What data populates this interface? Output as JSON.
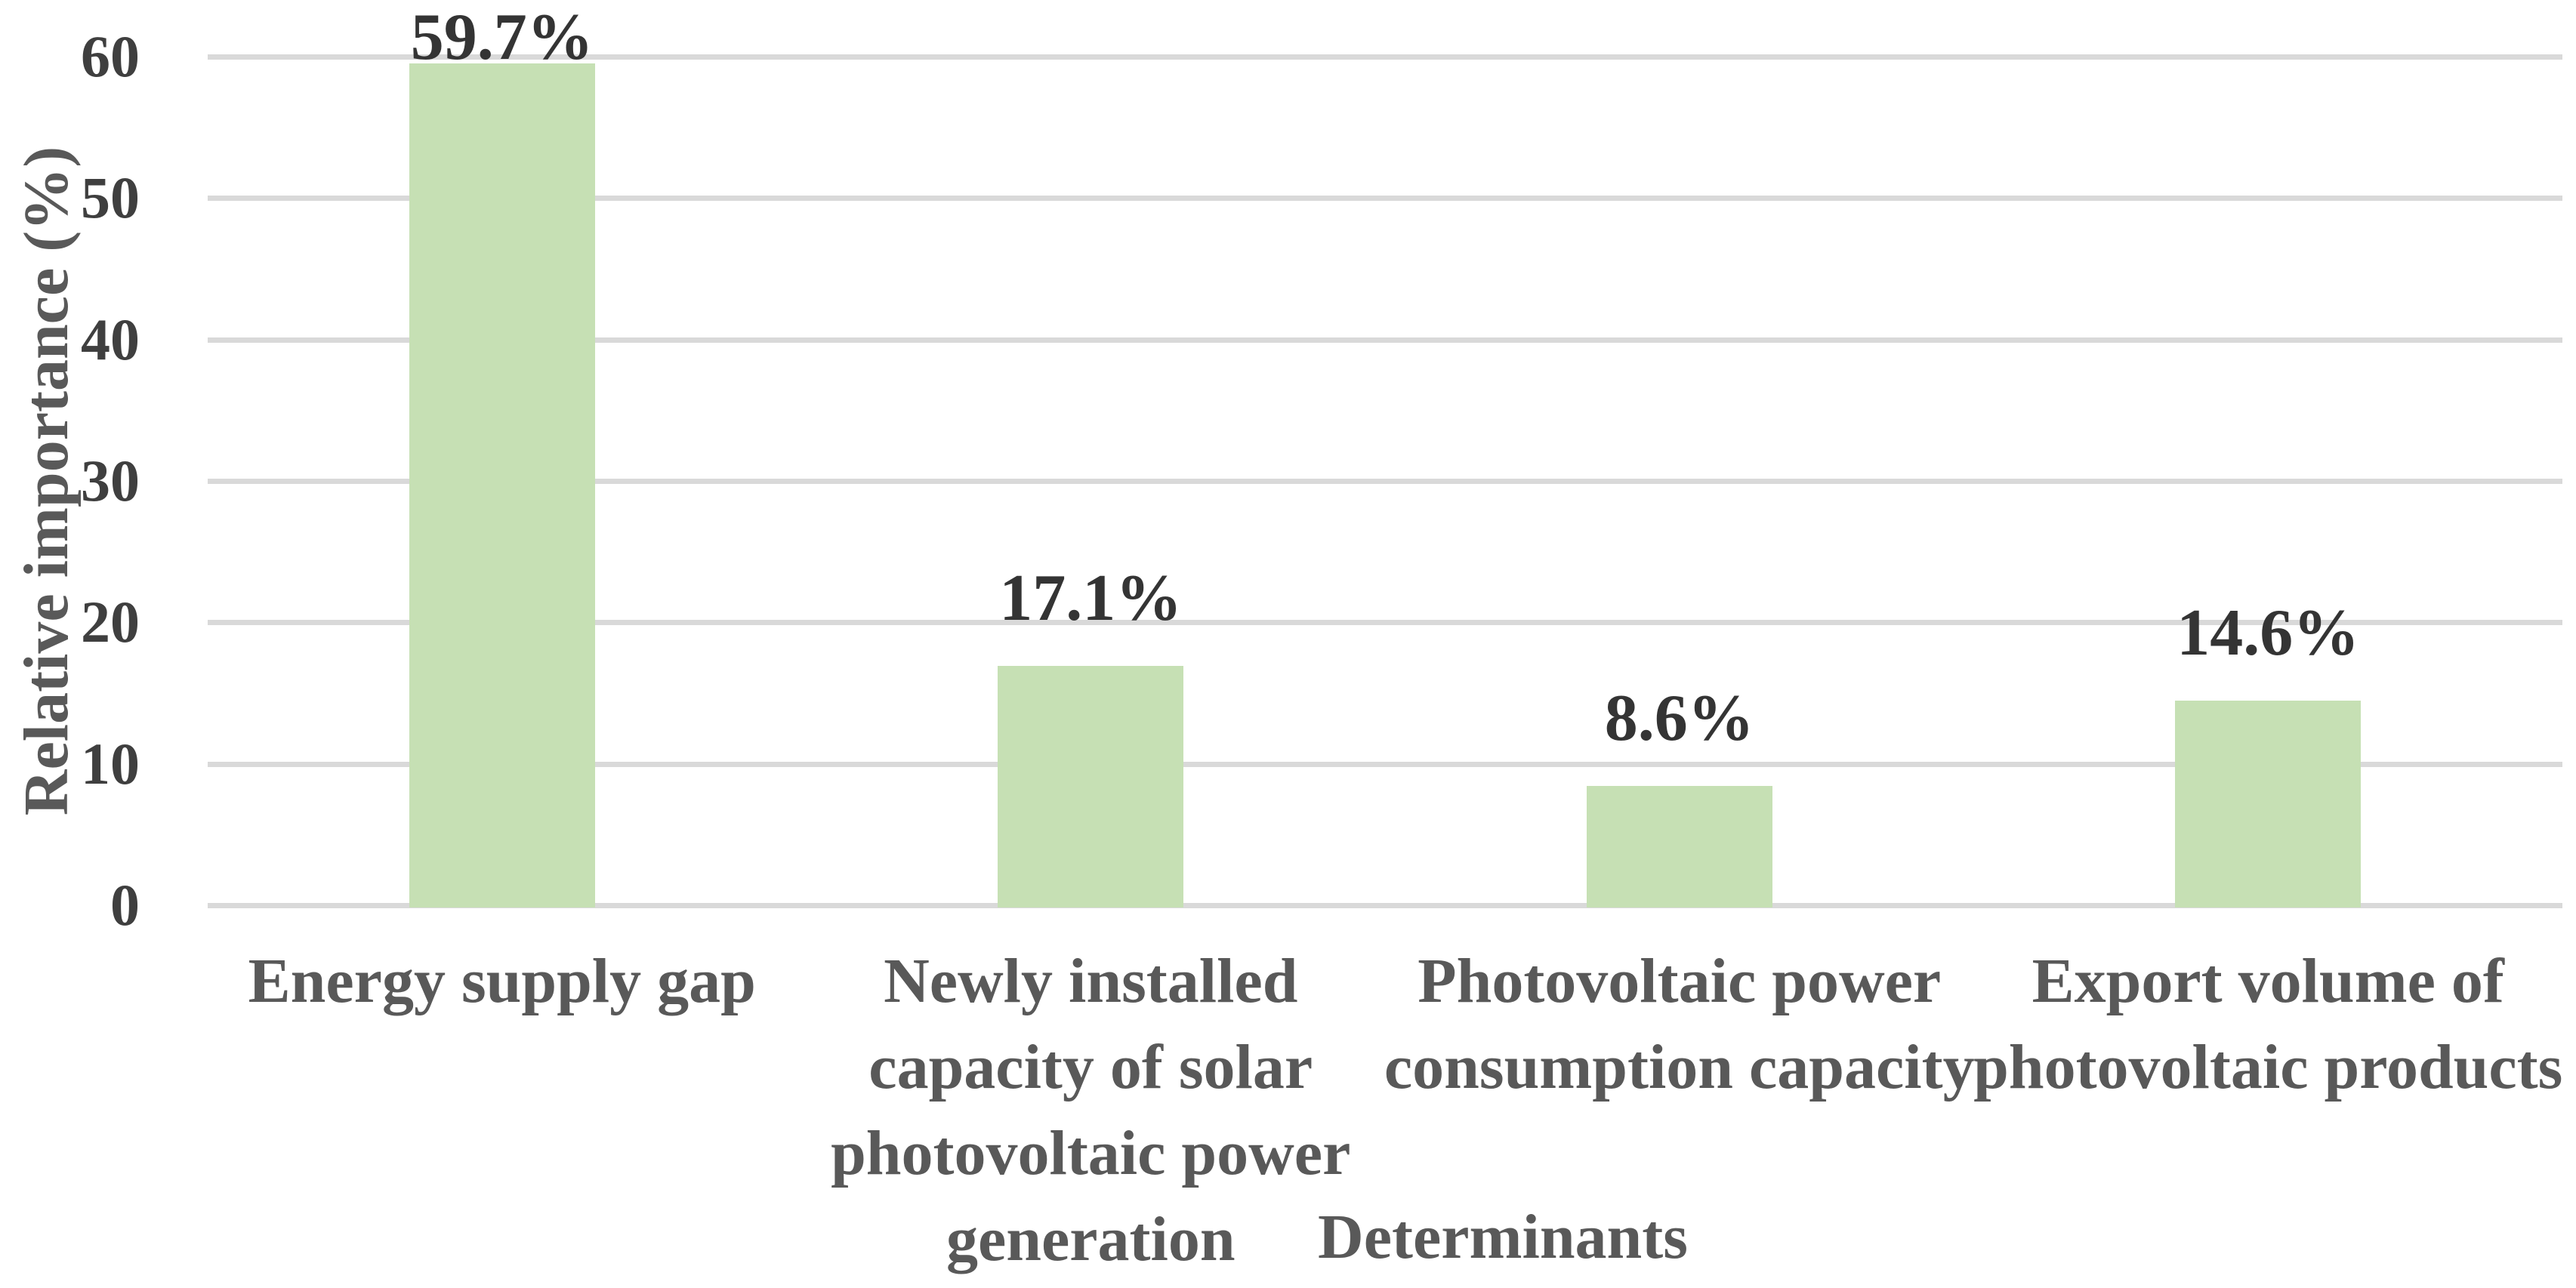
{
  "chart_data": {
    "type": "bar",
    "title": "",
    "categories": [
      "Energy supply gap",
      "Newly installed capacity of solar photovoltaic power generation",
      "Photovoltaic power consumption capacity",
      "Export volume of photovoltaic products"
    ],
    "values": [
      59.7,
      17.1,
      8.6,
      14.6
    ],
    "data_labels": [
      "59.7%",
      "17.1%",
      "8.6%",
      "14.6%"
    ],
    "xlabel": "Determinants",
    "ylabel": "Relative importance (%)",
    "ylim": [
      0,
      60
    ],
    "yticks": [
      0,
      10,
      20,
      30,
      40,
      50,
      60
    ],
    "grid": "horizontal-major",
    "legend_position": "none",
    "colors": {
      "bar": "#c6e0b4",
      "gridline": "#d9d9d9",
      "tick_text": "#3f3f3f",
      "data_label_text": "#343434",
      "title_text": "#595959",
      "background": "#ffffff"
    }
  }
}
